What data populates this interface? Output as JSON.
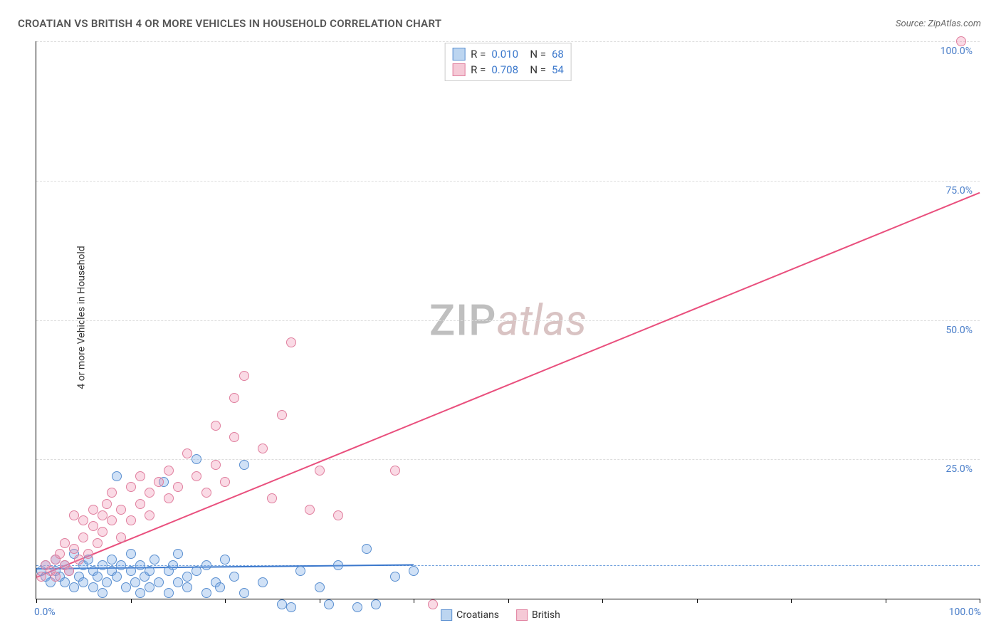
{
  "title": "CROATIAN VS BRITISH 4 OR MORE VEHICLES IN HOUSEHOLD CORRELATION CHART",
  "source": "Source: ZipAtlas.com",
  "y_axis_label": "4 or more Vehicles in Household",
  "watermark": {
    "part1": "ZIP",
    "part2": "atlas"
  },
  "chart": {
    "type": "scatter",
    "xlim": [
      0,
      100
    ],
    "ylim": [
      0,
      100
    ],
    "y_ticks": [
      25,
      50,
      75,
      100
    ],
    "y_tick_labels": [
      "25.0%",
      "50.0%",
      "75.0%",
      "100.0%"
    ],
    "x_ticks": [
      0,
      10,
      20,
      30,
      40,
      50,
      60,
      70,
      80,
      90,
      100
    ],
    "x_axis_left_label": "0.0%",
    "x_axis_right_label": "100.0%",
    "background_color": "#ffffff",
    "grid_color": "#dddddd",
    "point_radius": 7,
    "point_border_width": 1.5,
    "dashed_line_y": 6.0
  },
  "series": [
    {
      "name": "Croatians",
      "fill_color": "rgba(120,170,230,0.35)",
      "border_color": "#5a8fd0",
      "legend_fill": "#bcd5f0",
      "legend_border": "#5a8fd0",
      "R": "0.010",
      "N": "68",
      "trend": {
        "x1": 0,
        "y1": 5.5,
        "x2": 40,
        "y2": 6.2,
        "color": "#3b78cc",
        "width": 2
      },
      "points": [
        [
          0.5,
          5
        ],
        [
          1,
          4
        ],
        [
          1,
          6
        ],
        [
          1.5,
          3
        ],
        [
          2,
          5
        ],
        [
          2,
          7
        ],
        [
          2.5,
          4
        ],
        [
          3,
          6
        ],
        [
          3,
          3
        ],
        [
          3.5,
          5
        ],
        [
          4,
          2
        ],
        [
          4,
          8
        ],
        [
          4.5,
          4
        ],
        [
          5,
          6
        ],
        [
          5,
          3
        ],
        [
          5.5,
          7
        ],
        [
          6,
          5
        ],
        [
          6,
          2
        ],
        [
          6.5,
          4
        ],
        [
          7,
          6
        ],
        [
          7,
          1
        ],
        [
          7.5,
          3
        ],
        [
          8,
          5
        ],
        [
          8,
          7
        ],
        [
          8.5,
          22
        ],
        [
          8.5,
          4
        ],
        [
          9,
          6
        ],
        [
          9.5,
          2
        ],
        [
          10,
          5
        ],
        [
          10,
          8
        ],
        [
          10.5,
          3
        ],
        [
          11,
          6
        ],
        [
          11,
          1
        ],
        [
          11.5,
          4
        ],
        [
          12,
          5
        ],
        [
          12,
          2
        ],
        [
          12.5,
          7
        ],
        [
          13,
          3
        ],
        [
          13.5,
          21
        ],
        [
          14,
          5
        ],
        [
          14,
          1
        ],
        [
          14.5,
          6
        ],
        [
          15,
          3
        ],
        [
          15,
          8
        ],
        [
          16,
          4
        ],
        [
          16,
          2
        ],
        [
          17,
          25
        ],
        [
          17,
          5
        ],
        [
          18,
          1
        ],
        [
          18,
          6
        ],
        [
          19,
          3
        ],
        [
          19.5,
          2
        ],
        [
          20,
          7
        ],
        [
          21,
          4
        ],
        [
          22,
          24
        ],
        [
          22,
          1
        ],
        [
          24,
          3
        ],
        [
          26,
          -1
        ],
        [
          27,
          -1.5
        ],
        [
          28,
          5
        ],
        [
          30,
          2
        ],
        [
          31,
          -1
        ],
        [
          32,
          6
        ],
        [
          34,
          -1.5
        ],
        [
          35,
          9
        ],
        [
          36,
          -1
        ],
        [
          38,
          4
        ],
        [
          40,
          5
        ]
      ]
    },
    {
      "name": "British",
      "fill_color": "rgba(240,150,180,0.35)",
      "border_color": "#e07f9e",
      "legend_fill": "#f5c9d6",
      "legend_border": "#e07f9e",
      "R": "0.708",
      "N": "54",
      "trend": {
        "x1": 0,
        "y1": 4,
        "x2": 100,
        "y2": 73,
        "color": "#e94f7d",
        "width": 2
      },
      "points": [
        [
          0.5,
          4
        ],
        [
          1,
          6
        ],
        [
          1.5,
          5
        ],
        [
          2,
          7
        ],
        [
          2,
          4
        ],
        [
          2.5,
          8
        ],
        [
          3,
          6
        ],
        [
          3,
          10
        ],
        [
          3.5,
          5
        ],
        [
          4,
          9
        ],
        [
          4,
          15
        ],
        [
          4.5,
          7
        ],
        [
          5,
          11
        ],
        [
          5,
          14
        ],
        [
          5.5,
          8
        ],
        [
          6,
          13
        ],
        [
          6,
          16
        ],
        [
          6.5,
          10
        ],
        [
          7,
          15
        ],
        [
          7,
          12
        ],
        [
          7.5,
          17
        ],
        [
          8,
          14
        ],
        [
          8,
          19
        ],
        [
          9,
          16
        ],
        [
          9,
          11
        ],
        [
          10,
          20
        ],
        [
          10,
          14
        ],
        [
          11,
          22
        ],
        [
          11,
          17
        ],
        [
          12,
          19
        ],
        [
          12,
          15
        ],
        [
          13,
          21
        ],
        [
          14,
          18
        ],
        [
          14,
          23
        ],
        [
          15,
          20
        ],
        [
          16,
          26
        ],
        [
          17,
          22
        ],
        [
          18,
          19
        ],
        [
          19,
          31
        ],
        [
          19,
          24
        ],
        [
          20,
          21
        ],
        [
          21,
          29
        ],
        [
          21,
          36
        ],
        [
          22,
          40
        ],
        [
          24,
          27
        ],
        [
          25,
          18
        ],
        [
          26,
          33
        ],
        [
          27,
          46
        ],
        [
          29,
          16
        ],
        [
          30,
          23
        ],
        [
          32,
          15
        ],
        [
          38,
          23
        ],
        [
          42,
          -1
        ],
        [
          98,
          100
        ]
      ]
    }
  ],
  "top_legend": {
    "r_label": "R =",
    "n_label": "N ="
  },
  "bottom_legend": [
    {
      "label": "Croatians",
      "fill": "#bcd5f0",
      "border": "#5a8fd0"
    },
    {
      "label": "British",
      "fill": "#f5c9d6",
      "border": "#e07f9e"
    }
  ]
}
